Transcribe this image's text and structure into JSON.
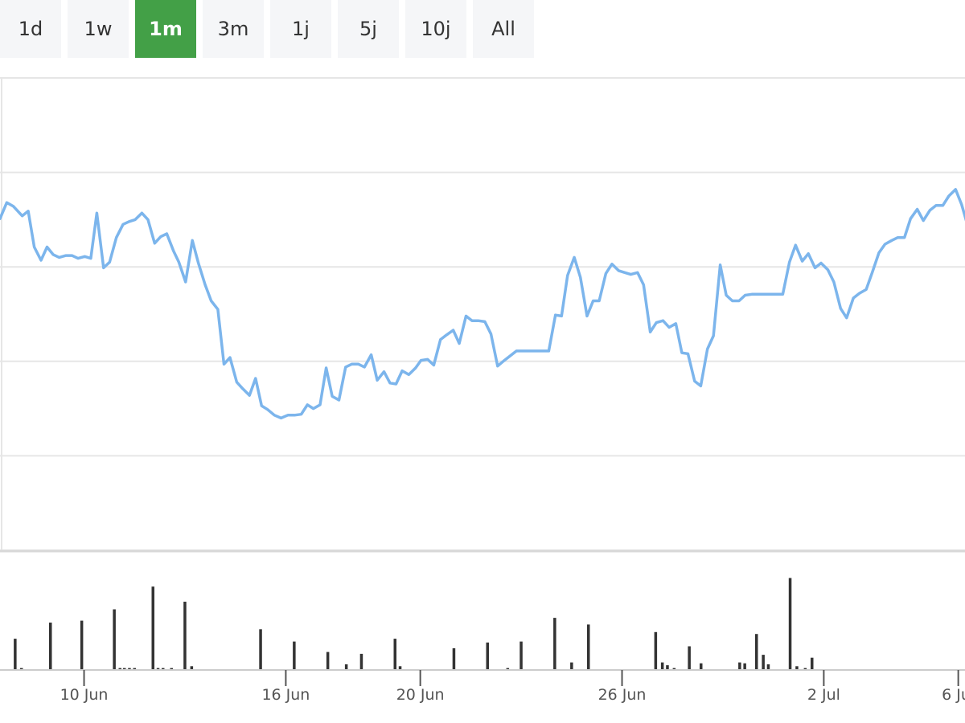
{
  "range_selector": {
    "buttons": [
      {
        "label": "1d",
        "active": false
      },
      {
        "label": "1w",
        "active": false
      },
      {
        "label": "1m",
        "active": true
      },
      {
        "label": "3m",
        "active": false
      },
      {
        "label": "1j",
        "active": false
      },
      {
        "label": "5j",
        "active": false
      },
      {
        "label": "10j",
        "active": false
      },
      {
        "label": "All",
        "active": false
      }
    ]
  },
  "colors": {
    "line": "#7cb5ec",
    "volume": "#333333",
    "grid": "#e6e6e6",
    "active_button": "#43a047",
    "button": "#f5f6f8"
  },
  "chart_data": {
    "type": "line",
    "title": "",
    "xlabel": "",
    "ylabel": "",
    "grid": true,
    "legend": "none",
    "x_axis": {
      "range_days": [
        -1.5,
        27.2
      ],
      "ticks": [
        {
          "day": 1,
          "label": "10 Jun"
        },
        {
          "day": 7,
          "label": "16 Jun"
        },
        {
          "day": 11,
          "label": "20 Jun"
        },
        {
          "day": 17,
          "label": "26 Jun"
        },
        {
          "day": 23,
          "label": "2 Jul"
        },
        {
          "day": 27,
          "label": "6 Jul"
        }
      ]
    },
    "y_axis": {
      "range": [
        0,
        5
      ]
    },
    "series": [
      {
        "name": "",
        "kind": "line",
        "points": [
          [
            -1.5,
            3.51
          ],
          [
            -1.4,
            3.68
          ],
          [
            -1.3,
            3.64
          ],
          [
            -1.17,
            3.54
          ],
          [
            -1.08,
            3.59
          ],
          [
            -0.99,
            3.21
          ],
          [
            -0.89,
            3.07
          ],
          [
            -0.8,
            3.21
          ],
          [
            -0.71,
            3.13
          ],
          [
            -0.62,
            3.1
          ],
          [
            -0.52,
            3.12
          ],
          [
            -0.43,
            3.12
          ],
          [
            -0.34,
            3.09
          ],
          [
            -0.24,
            3.11
          ],
          [
            -0.15,
            3.09
          ],
          [
            -0.06,
            3.57
          ],
          [
            0.04,
            2.99
          ],
          [
            0.13,
            3.05
          ],
          [
            0.23,
            3.31
          ],
          [
            0.33,
            3.45
          ],
          [
            0.42,
            3.48
          ],
          [
            0.51,
            3.5
          ],
          [
            0.61,
            3.57
          ],
          [
            0.7,
            3.5
          ],
          [
            0.8,
            3.25
          ],
          [
            0.89,
            3.32
          ],
          [
            0.98,
            3.35
          ],
          [
            1.08,
            3.17
          ],
          [
            1.16,
            3.05
          ],
          [
            1.26,
            2.84
          ],
          [
            1.36,
            3.28
          ],
          [
            1.45,
            3.04
          ],
          [
            1.55,
            2.81
          ],
          [
            1.64,
            2.64
          ],
          [
            1.74,
            2.55
          ],
          [
            1.83,
            1.97
          ],
          [
            1.92,
            2.04
          ],
          [
            2.02,
            1.78
          ],
          [
            2.11,
            1.71
          ],
          [
            2.21,
            1.64
          ],
          [
            2.3,
            1.82
          ],
          [
            2.39,
            1.53
          ],
          [
            2.48,
            1.49
          ],
          [
            2.58,
            1.43
          ],
          [
            2.68,
            1.4
          ],
          [
            2.78,
            1.43
          ],
          [
            2.88,
            1.43
          ],
          [
            2.98,
            1.44
          ],
          [
            3.07,
            1.54
          ],
          [
            3.16,
            1.5
          ],
          [
            3.26,
            1.54
          ],
          [
            3.35,
            1.93
          ],
          [
            3.44,
            1.63
          ],
          [
            3.54,
            1.59
          ],
          [
            3.64,
            1.94
          ],
          [
            3.73,
            1.97
          ],
          [
            3.83,
            1.97
          ],
          [
            3.92,
            1.94
          ],
          [
            4.02,
            2.07
          ],
          [
            4.11,
            1.8
          ],
          [
            4.21,
            1.89
          ],
          [
            4.3,
            1.77
          ],
          [
            4.39,
            1.76
          ],
          [
            4.48,
            1.9
          ],
          [
            4.58,
            1.86
          ],
          [
            4.68,
            1.93
          ],
          [
            4.76,
            2.01
          ],
          [
            4.86,
            2.02
          ],
          [
            4.95,
            1.96
          ],
          [
            5.05,
            2.23
          ],
          [
            5.14,
            2.28
          ],
          [
            5.24,
            2.33
          ],
          [
            5.33,
            2.19
          ],
          [
            5.43,
            2.48
          ],
          [
            5.52,
            2.43
          ],
          [
            5.61,
            2.43
          ],
          [
            5.71,
            2.42
          ],
          [
            5.8,
            2.29
          ],
          [
            5.9,
            1.95
          ],
          [
            6.0,
            2.01
          ],
          [
            6.09,
            2.06
          ],
          [
            6.18,
            2.11
          ],
          [
            6.28,
            2.11
          ],
          [
            6.37,
            2.11
          ],
          [
            6.47,
            2.11
          ],
          [
            6.56,
            2.11
          ],
          [
            6.66,
            2.11
          ],
          [
            6.76,
            2.49
          ],
          [
            6.85,
            2.48
          ],
          [
            6.94,
            2.91
          ],
          [
            7.04,
            3.1
          ],
          [
            7.13,
            2.89
          ],
          [
            7.23,
            2.48
          ],
          [
            7.32,
            2.64
          ],
          [
            7.41,
            2.64
          ],
          [
            7.51,
            2.93
          ],
          [
            7.6,
            3.03
          ],
          [
            7.7,
            2.96
          ],
          [
            7.79,
            2.94
          ],
          [
            7.88,
            2.92
          ],
          [
            7.98,
            2.94
          ],
          [
            8.07,
            2.81
          ],
          [
            8.17,
            2.31
          ],
          [
            8.26,
            2.41
          ],
          [
            8.36,
            2.43
          ],
          [
            8.45,
            2.36
          ],
          [
            8.55,
            2.4
          ],
          [
            8.64,
            2.09
          ],
          [
            8.73,
            2.08
          ],
          [
            8.83,
            1.79
          ],
          [
            8.92,
            1.74
          ],
          [
            9.02,
            2.13
          ],
          [
            9.11,
            2.27
          ],
          [
            9.21,
            3.02
          ],
          [
            9.3,
            2.7
          ],
          [
            9.39,
            2.64
          ],
          [
            9.49,
            2.64
          ],
          [
            9.58,
            2.7
          ],
          [
            9.68,
            2.71
          ],
          [
            9.77,
            2.71
          ],
          [
            10.05,
            2.71
          ],
          [
            10.14,
            2.71
          ],
          [
            10.24,
            3.05
          ],
          [
            10.33,
            3.23
          ],
          [
            10.43,
            3.06
          ],
          [
            10.52,
            3.14
          ],
          [
            10.62,
            2.99
          ],
          [
            10.71,
            3.04
          ],
          [
            10.81,
            2.97
          ],
          [
            10.9,
            2.84
          ],
          [
            11.0,
            2.56
          ],
          [
            11.09,
            2.46
          ],
          [
            11.19,
            2.67
          ],
          [
            11.28,
            2.72
          ],
          [
            11.38,
            2.76
          ],
          [
            11.47,
            2.94
          ],
          [
            11.57,
            3.15
          ],
          [
            11.66,
            3.24
          ],
          [
            11.76,
            3.28
          ],
          [
            11.85,
            3.31
          ],
          [
            11.95,
            3.31
          ],
          [
            12.04,
            3.51
          ],
          [
            12.14,
            3.61
          ],
          [
            12.23,
            3.49
          ],
          [
            12.33,
            3.6
          ],
          [
            12.42,
            3.65
          ],
          [
            12.52,
            3.65
          ],
          [
            12.61,
            3.75
          ],
          [
            12.71,
            3.82
          ],
          [
            12.8,
            3.66
          ],
          [
            12.9,
            3.41
          ],
          [
            13.0,
            3.43
          ],
          [
            13.1,
            3.45
          ],
          [
            13.2,
            3.45
          ],
          [
            13.3,
            3.45
          ]
        ]
      },
      {
        "name": "",
        "kind": "volume",
        "ylim": [
          0,
          1
        ],
        "bars": [
          [
            -1.05,
            0.33
          ],
          [
            -0.86,
            0.02
          ],
          [
            0.0,
            0.5
          ],
          [
            0.93,
            0.52
          ],
          [
            1.9,
            0.64
          ],
          [
            2.07,
            0.02
          ],
          [
            2.2,
            0.02
          ],
          [
            2.35,
            0.02
          ],
          [
            2.5,
            0.02
          ],
          [
            3.05,
            0.88
          ],
          [
            3.2,
            0.02
          ],
          [
            3.35,
            0.02
          ],
          [
            3.6,
            0.02
          ],
          [
            4.0,
            0.72
          ],
          [
            4.2,
            0.04
          ],
          [
            6.25,
            0.43
          ],
          [
            7.25,
            0.3
          ],
          [
            8.25,
            0.19
          ],
          [
            8.8,
            0.06
          ],
          [
            9.25,
            0.17
          ],
          [
            10.25,
            0.33
          ],
          [
            10.4,
            0.04
          ],
          [
            12.0,
            0.23
          ],
          [
            13.0,
            0.29
          ],
          [
            13.6,
            0.02
          ],
          [
            14.0,
            0.3
          ],
          [
            15.0,
            0.55
          ],
          [
            15.5,
            0.08
          ],
          [
            16.0,
            0.48
          ],
          [
            18.0,
            0.4
          ],
          [
            18.2,
            0.08
          ],
          [
            18.35,
            0.05
          ],
          [
            18.55,
            0.02
          ],
          [
            19.0,
            0.25
          ],
          [
            19.35,
            0.07
          ],
          [
            20.5,
            0.08
          ],
          [
            20.65,
            0.07
          ],
          [
            21.0,
            0.38
          ],
          [
            21.2,
            0.16
          ],
          [
            21.35,
            0.06
          ],
          [
            22.0,
            0.97
          ],
          [
            22.2,
            0.04
          ],
          [
            22.45,
            0.02
          ],
          [
            22.65,
            0.13
          ]
        ]
      }
    ]
  }
}
